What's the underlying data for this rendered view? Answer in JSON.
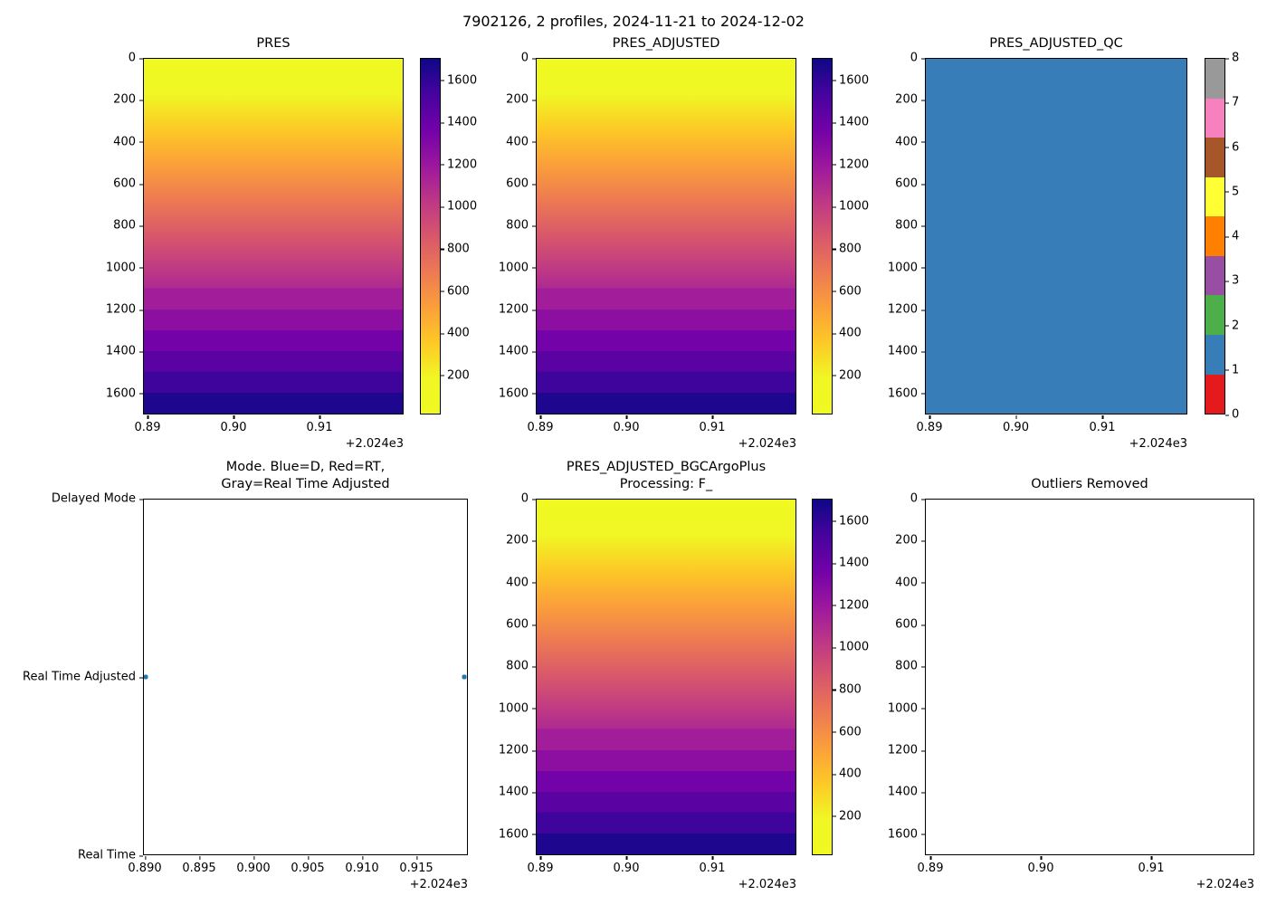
{
  "figure": {
    "suptitle": "7902126, 2 profiles, 2024-11-21 to 2024-12-02"
  },
  "panels": {
    "pres": {
      "title": "PRES",
      "yticks": [
        "0",
        "200",
        "400",
        "600",
        "800",
        "1000",
        "1200",
        "1400",
        "1600"
      ],
      "xticks": [
        "0.89",
        "0.90",
        "0.91"
      ],
      "offset": "+2.024e3",
      "cbticks": [
        "1600",
        "1400",
        "1200",
        "1000",
        "800",
        "600",
        "400",
        "200"
      ]
    },
    "pres_adjusted": {
      "title": "PRES_ADJUSTED",
      "yticks": [
        "0",
        "200",
        "400",
        "600",
        "800",
        "1000",
        "1200",
        "1400",
        "1600"
      ],
      "xticks": [
        "0.89",
        "0.90",
        "0.91"
      ],
      "offset": "+2.024e3",
      "cbticks": [
        "1600",
        "1400",
        "1200",
        "1000",
        "800",
        "600",
        "400",
        "200"
      ]
    },
    "qc": {
      "title": "PRES_ADJUSTED_QC",
      "yticks": [
        "0",
        "200",
        "400",
        "600",
        "800",
        "1000",
        "1200",
        "1400",
        "1600"
      ],
      "xticks": [
        "0.89",
        "0.90",
        "0.91"
      ],
      "offset": "+2.024e3",
      "cbticks": [
        "8",
        "7",
        "6",
        "5",
        "4",
        "3",
        "2",
        "1",
        "0"
      ]
    },
    "mode": {
      "title_lines": [
        "Mode. Blue=D, Red=RT,",
        "Gray=Real Time Adjusted"
      ],
      "yticks": [
        "Delayed Mode",
        "Real Time Adjusted",
        "Real Time"
      ],
      "xticks": [
        "0.890",
        "0.895",
        "0.900",
        "0.905",
        "0.910",
        "0.915"
      ],
      "offset": "+2.024e3"
    },
    "bgc": {
      "title_lines": [
        "PRES_ADJUSTED_BGCArgoPlus",
        "Processing: F_"
      ],
      "yticks": [
        "0",
        "200",
        "400",
        "600",
        "800",
        "1000",
        "1200",
        "1400",
        "1600"
      ],
      "xticks": [
        "0.89",
        "0.90",
        "0.91"
      ],
      "offset": "+2.024e3",
      "cbticks": [
        "1600",
        "1400",
        "1200",
        "1000",
        "800",
        "600",
        "400",
        "200"
      ]
    },
    "outliers": {
      "title": "Outliers Removed",
      "yticks": [
        "0",
        "200",
        "400",
        "600",
        "800",
        "1000",
        "1200",
        "1400",
        "1600"
      ],
      "xticks": [
        "0.89",
        "0.90",
        "0.91"
      ],
      "offset": "+2.024e3"
    }
  },
  "colors": {
    "qc_fill": "#377eb8",
    "marker": "#1f77b4",
    "qc_segments_top_to_bottom": [
      "#999999",
      "#f781bf",
      "#a65628",
      "#ffff33",
      "#ff7f00",
      "#984ea3",
      "#4daf4a",
      "#377eb8",
      "#e41a1c"
    ],
    "gradients": {
      "profile_heatmap": [
        "#f0f921 0%",
        "#f0f724 10%",
        "#fdc926 20%",
        "#fb9f3a 30%",
        "#ed7953 40%",
        "#d8576b 50%",
        "#bd3786 60%",
        "#ad2a91 64.7%",
        "#a21d9a 64.7%",
        "#a21d9a 70.6%",
        "#8d0fa2 70.6%",
        "#8d0fa2 76.5%",
        "#7302a8 76.5%",
        "#7302a8 82.4%",
        "#5b02a3 82.4%",
        "#5b02a3 88.2%",
        "#3f049c 88.2%",
        "#3f049c 94.1%",
        "#1e078e 94.1%",
        "#1e078e 100%"
      ],
      "plasma_colorbar": [
        "#0d0887 0%",
        "#46039f 10%",
        "#7201a8 20%",
        "#9c179e 30%",
        "#bd3786 40%",
        "#d8576b 50%",
        "#ed7953 60%",
        "#fb9f3a 70%",
        "#fdc926 80%",
        "#f0f724 90%",
        "#f0f921 100%"
      ]
    }
  },
  "chart_data": [
    {
      "type": "heatmap",
      "title": "PRES",
      "x_profiles": [
        2024.89,
        2024.916
      ],
      "xlim": [
        2024.889,
        2024.92
      ],
      "x_offset": "+2.024e3",
      "xticks": [
        2024.89,
        2024.9,
        2024.91
      ],
      "ylim": [
        1700,
        0
      ],
      "yticks": [
        0,
        200,
        400,
        600,
        800,
        1000,
        1200,
        1400,
        1600
      ],
      "colormap": "plasma reversed (yellow=low pressure at surface, dark indigo=high pressure at depth)",
      "colorbar_ticks": [
        200,
        400,
        600,
        800,
        1000,
        1200,
        1400,
        1600
      ],
      "values_summary": "pressure ~= depth; smooth 0-1100 dbar, then discrete ~100 dbar bands 1100-1700"
    },
    {
      "type": "heatmap",
      "title": "PRES_ADJUSTED",
      "x_profiles": [
        2024.89,
        2024.916
      ],
      "xlim": [
        2024.889,
        2024.92
      ],
      "x_offset": "+2.024e3",
      "xticks": [
        2024.89,
        2024.9,
        2024.91
      ],
      "ylim": [
        1700,
        0
      ],
      "yticks": [
        0,
        200,
        400,
        600,
        800,
        1000,
        1200,
        1400,
        1600
      ],
      "colormap": "plasma reversed",
      "colorbar_ticks": [
        200,
        400,
        600,
        800,
        1000,
        1200,
        1400,
        1600
      ],
      "values_summary": "identical appearance to PRES"
    },
    {
      "type": "heatmap",
      "title": "PRES_ADJUSTED_QC",
      "x_profiles": [
        2024.89,
        2024.916
      ],
      "xticks": [
        2024.89,
        2024.9,
        2024.91
      ],
      "x_offset": "+2.024e3",
      "yticks": [
        0,
        200,
        400,
        600,
        800,
        1000,
        1200,
        1400,
        1600
      ],
      "constant_value": 1,
      "colorbar_ticks": [
        0,
        1,
        2,
        3,
        4,
        5,
        6,
        7,
        8
      ],
      "colorbar_colors_0_to_8": [
        "#e41a1c",
        "#377eb8",
        "#4daf4a",
        "#984ea3",
        "#ff7f00",
        "#ffff33",
        "#a65628",
        "#f781bf",
        "#999999"
      ],
      "values_summary": "all cells QC flag = 1 (blue)"
    },
    {
      "type": "scatter",
      "title": "Mode. Blue=D, Red=RT, Gray=Real Time Adjusted",
      "y_categories": [
        "Real Time",
        "Real Time Adjusted",
        "Delayed Mode"
      ],
      "xticks": [
        2024.89,
        2024.895,
        2024.9,
        2024.905,
        2024.91,
        2024.915
      ],
      "x_offset": "+2.024e3",
      "points": [
        {
          "x": 2024.89,
          "y": "Real Time Adjusted"
        },
        {
          "x": 2024.916,
          "y": "Real Time Adjusted"
        }
      ]
    },
    {
      "type": "heatmap",
      "title": "PRES_ADJUSTED_BGCArgoPlus Processing: F_",
      "x_profiles": [
        2024.89,
        2024.916
      ],
      "xticks": [
        2024.89,
        2024.9,
        2024.91
      ],
      "x_offset": "+2.024e3",
      "ylim": [
        1700,
        0
      ],
      "yticks": [
        0,
        200,
        400,
        600,
        800,
        1000,
        1200,
        1400,
        1600
      ],
      "colormap": "plasma reversed",
      "colorbar_ticks": [
        200,
        400,
        600,
        800,
        1000,
        1200,
        1400,
        1600
      ],
      "values_summary": "identical appearance to PRES"
    },
    {
      "type": "scatter",
      "title": "Outliers Removed",
      "xticks": [
        2024.89,
        2024.9,
        2024.91
      ],
      "x_offset": "+2.024e3",
      "yticks": [
        0,
        200,
        400,
        600,
        800,
        1000,
        1200,
        1400,
        1600
      ],
      "points": [],
      "values_summary": "empty axes - no outliers plotted"
    }
  ]
}
